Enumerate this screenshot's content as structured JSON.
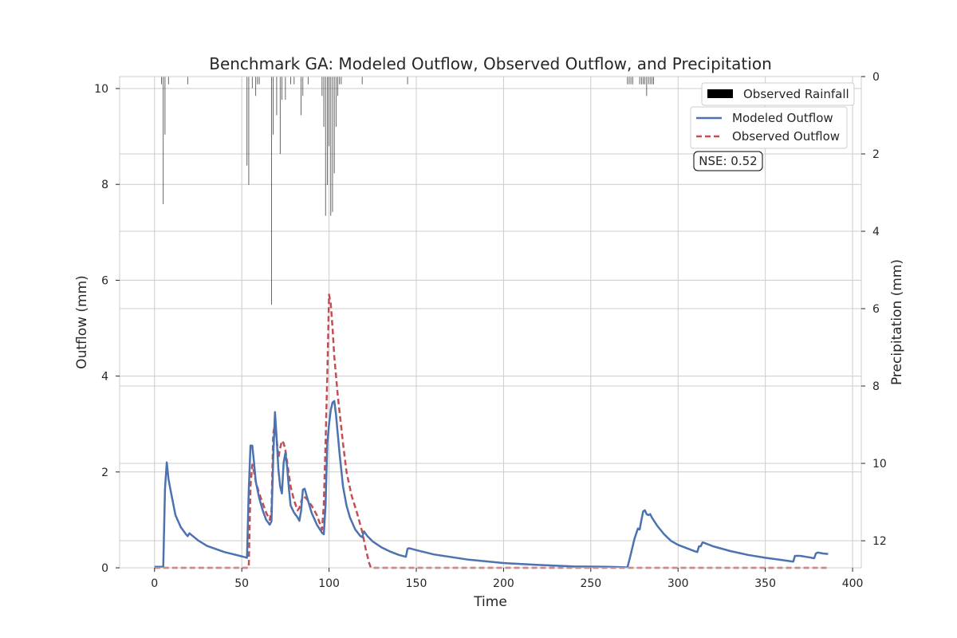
{
  "chart_data": {
    "type": "line",
    "title": "Benchmark GA: Modeled Outflow, Observed Outflow, and Precipitation",
    "xlabel": "Time",
    "ylabel": "Outflow (mm)",
    "y2label": "Precipitation (mm)",
    "xlim": [
      -20,
      405
    ],
    "ylim": [
      0,
      10.25
    ],
    "y2lim": [
      0,
      12.7
    ],
    "y2_inverted": true,
    "grid": true,
    "x_ticks": [
      0,
      50,
      100,
      150,
      200,
      250,
      300,
      350,
      400
    ],
    "y_ticks": [
      0,
      2,
      4,
      6,
      8,
      10
    ],
    "y2_ticks": [
      0,
      2,
      4,
      6,
      8,
      10,
      12
    ],
    "annotation": "NSE: 0.52",
    "legend_top": {
      "placement": "top-right",
      "label": "Observed Rainfall",
      "color": "#000000"
    },
    "legend_lines": {
      "placement": "top-right"
    },
    "series": [
      {
        "name": "Modeled Outflow",
        "color": "#4c72b0",
        "style": "solid",
        "x": [
          0,
          5,
          6,
          7,
          8,
          9,
          12,
          15,
          18,
          19,
          20,
          25,
          30,
          40,
          50,
          53,
          54,
          55,
          56,
          57,
          58,
          60,
          62,
          64,
          66,
          67,
          68,
          69,
          70,
          71,
          72,
          73,
          74,
          75,
          76,
          77,
          78,
          80,
          82,
          83,
          84,
          85,
          86,
          88,
          90,
          93,
          96,
          97,
          98,
          99,
          100,
          101,
          102,
          103,
          104,
          105,
          106,
          108,
          110,
          112,
          115,
          118,
          119,
          120,
          122,
          125,
          130,
          135,
          140,
          144,
          145,
          146,
          150,
          160,
          180,
          200,
          220,
          240,
          260,
          270,
          271,
          273,
          275,
          277,
          278,
          279,
          280,
          281,
          282,
          283,
          284,
          285,
          288,
          292,
          296,
          300,
          305,
          310,
          311,
          312,
          313,
          314,
          315,
          320,
          330,
          340,
          350,
          360,
          366,
          367,
          368,
          370,
          375,
          378,
          379,
          380,
          383,
          386
        ],
        "y": [
          0.02,
          0.02,
          1.65,
          2.2,
          1.85,
          1.65,
          1.1,
          0.85,
          0.7,
          0.66,
          0.72,
          0.57,
          0.46,
          0.33,
          0.24,
          0.21,
          1.6,
          2.55,
          2.55,
          2.2,
          1.8,
          1.45,
          1.2,
          1.0,
          0.9,
          0.97,
          2.3,
          3.25,
          2.7,
          2.05,
          1.7,
          1.55,
          2.2,
          2.4,
          2.1,
          1.65,
          1.3,
          1.15,
          1.05,
          0.98,
          1.2,
          1.63,
          1.65,
          1.4,
          1.15,
          0.9,
          0.73,
          0.7,
          1.3,
          2.6,
          3.0,
          3.3,
          3.45,
          3.48,
          3.2,
          2.8,
          2.4,
          1.7,
          1.3,
          1.05,
          0.8,
          0.66,
          0.64,
          0.76,
          0.66,
          0.55,
          0.43,
          0.34,
          0.27,
          0.23,
          0.4,
          0.41,
          0.37,
          0.28,
          0.17,
          0.1,
          0.06,
          0.03,
          0.02,
          0.01,
          0.01,
          0.3,
          0.6,
          0.82,
          0.8,
          1.0,
          1.18,
          1.2,
          1.12,
          1.1,
          1.12,
          1.05,
          0.88,
          0.7,
          0.56,
          0.48,
          0.41,
          0.34,
          0.33,
          0.45,
          0.45,
          0.53,
          0.52,
          0.45,
          0.35,
          0.27,
          0.21,
          0.16,
          0.13,
          0.25,
          0.25,
          0.25,
          0.22,
          0.2,
          0.3,
          0.32,
          0.3,
          0.29
        ]
      },
      {
        "name": "Observed Outflow",
        "color": "#c44e52",
        "style": "dashed",
        "x": [
          0,
          20,
          50,
          54,
          55,
          56,
          57,
          58,
          60,
          62,
          64,
          66,
          67,
          68,
          69,
          70,
          71,
          72,
          73,
          74,
          75,
          76,
          78,
          80,
          82,
          83,
          85,
          87,
          90,
          93,
          95,
          96,
          97,
          98,
          99,
          100,
          101,
          102,
          103,
          105,
          108,
          110,
          113,
          116,
          119,
          121,
          123,
          124,
          150,
          200,
          250,
          300,
          350,
          386
        ],
        "y": [
          0.0,
          0.0,
          0.0,
          0.0,
          1.7,
          2.15,
          2.0,
          1.8,
          1.55,
          1.35,
          1.15,
          1.0,
          1.2,
          2.8,
          3.0,
          2.7,
          2.3,
          2.5,
          2.65,
          2.6,
          2.45,
          2.2,
          1.7,
          1.4,
          1.2,
          1.25,
          1.5,
          1.45,
          1.3,
          1.1,
          0.9,
          0.8,
          1.3,
          2.6,
          4.0,
          5.7,
          5.5,
          5.0,
          4.4,
          3.6,
          2.6,
          2.0,
          1.5,
          1.15,
          0.75,
          0.4,
          0.1,
          0.0,
          0.0,
          0.0,
          0.0,
          0.0,
          0.0,
          0.0
        ]
      },
      {
        "name": "Observed Rainfall",
        "type": "bar",
        "axis": "y2",
        "color": "#000000",
        "x": [
          4,
          5,
          6,
          8,
          19,
          53,
          54,
          56,
          58,
          59,
          60,
          67,
          68,
          70,
          72,
          73,
          75,
          78,
          80,
          84,
          85,
          88,
          96,
          97,
          98,
          99,
          100,
          101,
          102,
          103,
          104,
          105,
          106,
          107,
          119,
          145,
          271,
          272,
          273,
          274,
          278,
          279,
          280,
          281,
          282,
          283,
          284,
          285,
          286
        ],
        "values": [
          0.2,
          3.3,
          1.5,
          0.2,
          0.2,
          2.3,
          2.8,
          0.3,
          0.5,
          0.2,
          0.2,
          5.9,
          1.5,
          1.0,
          2.0,
          0.6,
          0.6,
          0.2,
          0.2,
          1.0,
          0.5,
          0.2,
          0.5,
          1.3,
          3.6,
          2.8,
          1.8,
          3.6,
          3.5,
          2.5,
          1.3,
          0.5,
          0.2,
          0.2,
          0.2,
          0.2,
          0.2,
          0.2,
          0.2,
          0.2,
          0.2,
          0.2,
          0.2,
          0.2,
          0.5,
          0.2,
          0.2,
          0.2,
          0.2
        ]
      }
    ]
  }
}
